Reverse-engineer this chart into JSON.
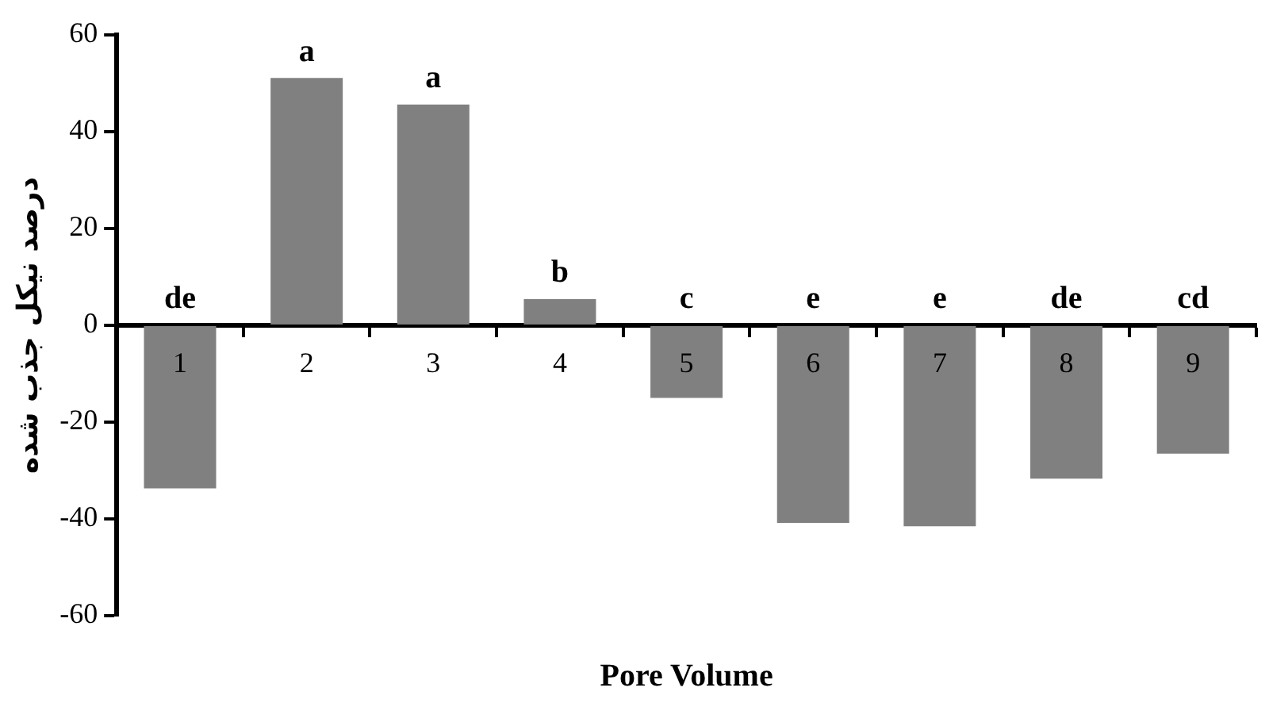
{
  "chart_data": {
    "type": "bar",
    "xlabel": "Pore Volume",
    "ylabel": "درصد نیکل جذب شده",
    "categories": [
      "1",
      "2",
      "3",
      "4",
      "5",
      "6",
      "7",
      "8",
      "9"
    ],
    "values": [
      -33.7,
      51.1,
      45.6,
      5.4,
      -15.0,
      -40.8,
      -41.5,
      -31.7,
      -26.5
    ],
    "color": "#808080",
    "ylim": [
      -60,
      60
    ],
    "yticks": [
      -60,
      -40,
      -20,
      0,
      20,
      40,
      60
    ],
    "grid": false,
    "legend": false,
    "annotations": [
      "de",
      "a",
      "a",
      "b",
      "c",
      "e",
      "e",
      "de",
      "cd"
    ]
  }
}
